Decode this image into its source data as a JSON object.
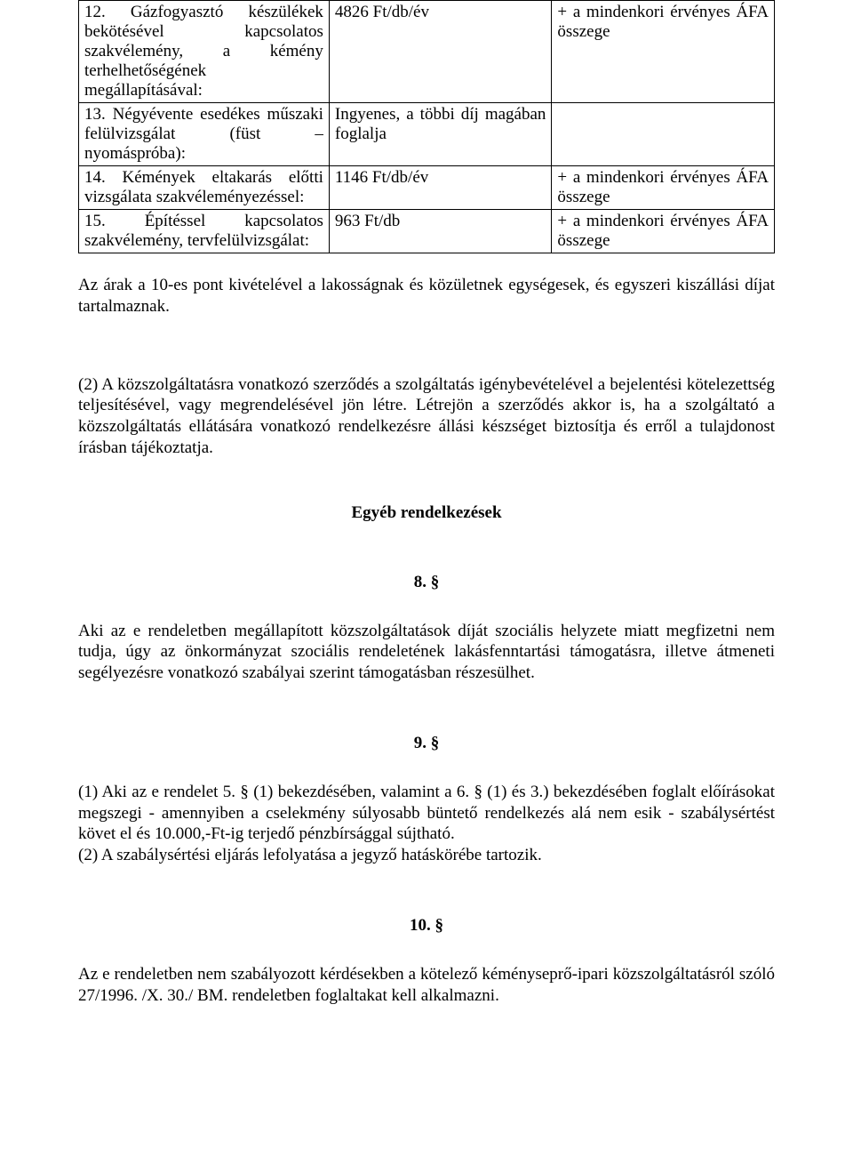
{
  "table": {
    "rows": [
      {
        "c1": "12. Gázfogyasztó készülékek bekötésével kapcsolatos szakvélemény, a kémény terhelhetőségének megállapításával:",
        "c2": "4826 Ft/db/év",
        "c3": "+ a mindenkori érvényes ÁFA összege"
      },
      {
        "c1": "13. Négyévente esedékes műszaki felülvizsgálat (füst – nyomáspróba):",
        "c2": "Ingyenes, a többi díj magában foglalja",
        "c3": ""
      },
      {
        "c1": "14. Kémények eltakarás előtti vizsgálata szakvéleményezéssel:",
        "c2": "1146 Ft/db/év",
        "c3": "+ a mindenkori érvényes ÁFA összege"
      },
      {
        "c1": "15. Építéssel kapcsolatos szakvélemény, tervfelülvizsgálat:",
        "c2": "963 Ft/db",
        "c3": "+ a mindenkori érvényes ÁFA összege"
      }
    ]
  },
  "p_after_table": "Az árak a 10-es pont kivételével a lakosságnak és közületnek egységesek, és egyszeri kiszállási díjat tartalmaznak.",
  "p_two": "(2) A közszolgáltatásra vonatkozó szerződés a szolgáltatás igénybevételével a bejelentési kötelezettség teljesítésével, vagy megrendelésével jön létre. Létrejön a szerződés akkor is, ha a szolgáltató a közszolgáltatás ellátására vonatkozó rendelkezésre állási készséget biztosítja és erről a tulajdonost írásban tájékoztatja.",
  "heading_other": "Egyéb rendelkezések",
  "sec8": {
    "num": "8. §",
    "text": "Aki az e rendeletben megállapított közszolgáltatások díját szociális helyzete miatt megfizetni nem tudja, úgy az önkormányzat szociális rendeletének lakásfenntartási támogatásra, illetve átmeneti segélyezésre vonatkozó szabályai szerint támogatásban részesülhet."
  },
  "sec9": {
    "num": "9. §",
    "p1": "(1) Aki az e rendelet 5. § (1) bekezdésében, valamint a 6. § (1) és 3.) bekezdésében foglalt előírásokat megszegi - amennyiben a cselekmény súlyosabb büntető rendelkezés alá nem esik - szabálysértést követ el és 10.000,-Ft-ig terjedő pénzbírsággal sújtható.",
    "p2": "(2) A szabálysértési eljárás lefolyatása a jegyző hatáskörébe tartozik."
  },
  "sec10": {
    "num": "10. §",
    "text": "Az e rendeletben nem szabályozott kérdésekben a kötelező kéményseprő-ipari közszolgáltatásról szóló 27/1996. /X. 30./ BM. rendeletben foglaltakat kell alkalmazni."
  }
}
